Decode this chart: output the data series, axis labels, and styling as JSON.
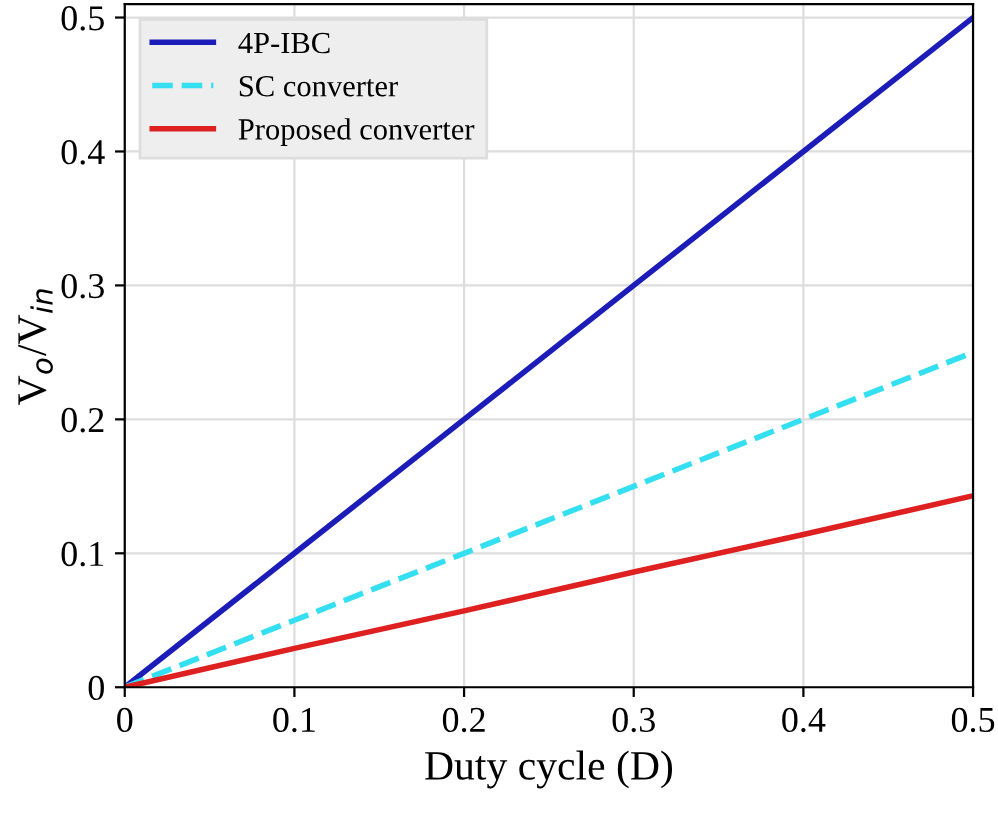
{
  "chart_data": {
    "type": "line",
    "xlabel": "Duty cycle (D)",
    "ylabel": "V$_{o}$/V$_{in}$",
    "x": [
      0,
      0.1,
      0.2,
      0.3,
      0.4,
      0.5
    ],
    "series": [
      {
        "name": "4P-IBC",
        "color": "#1c1cb8",
        "values": [
          0,
          0.1,
          0.2,
          0.3,
          0.4,
          0.5
        ],
        "line_style": "solid"
      },
      {
        "name": "SC converter",
        "color": "#33dff0",
        "values": [
          0,
          0.05,
          0.1,
          0.15,
          0.2,
          0.25
        ],
        "line_style": "dashed"
      },
      {
        "name": "Proposed converter",
        "color": "#de2020",
        "values": [
          0,
          0.029,
          0.057,
          0.086,
          0.114,
          0.143
        ],
        "line_style": "solid"
      }
    ],
    "xlim": [
      0,
      0.5
    ],
    "ylim": [
      0,
      0.51
    ],
    "xticks": [
      0,
      0.1,
      0.2,
      0.3,
      0.4,
      0.5
    ],
    "yticks": [
      0,
      0.1,
      0.2,
      0.3,
      0.4,
      0.5
    ],
    "grid": true,
    "legend": "top left"
  }
}
